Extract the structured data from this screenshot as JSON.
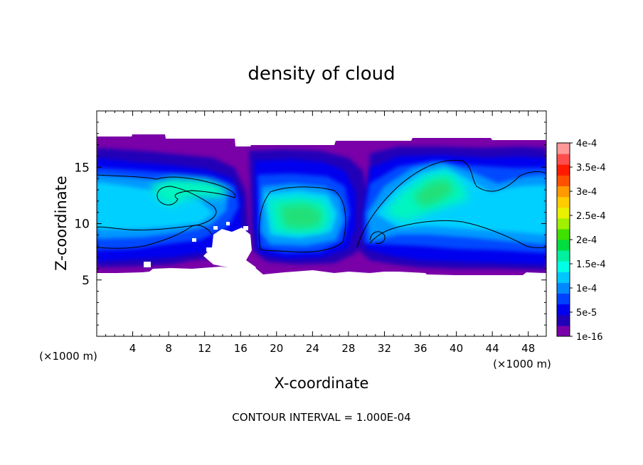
{
  "chart_data": {
    "type": "heatmap",
    "title": "density of cloud",
    "xlabel": "X-coordinate",
    "ylabel": "Z-coordinate",
    "x_unit": "(×1000 m)",
    "xlim": [
      0,
      50
    ],
    "ylim": [
      0,
      20
    ],
    "x_ticks": [
      4,
      8,
      12,
      16,
      20,
      24,
      28,
      32,
      36,
      40,
      44,
      48
    ],
    "y_ticks": [
      5,
      10,
      15
    ],
    "footer": "CONTOUR INTERVAL = 1.000E-04",
    "colorbar": {
      "labels": [
        "1e-16",
        "5e-5",
        "1e-4",
        "1.5e-4",
        "2e-4",
        "2.5e-4",
        "3e-4",
        "3.5e-4",
        "4e-4"
      ],
      "colors": [
        "#7a00a8",
        "#2000b8",
        "#0000ee",
        "#0040ff",
        "#0088ff",
        "#00c8ff",
        "#00ffe6",
        "#00f0a0",
        "#00dd40",
        "#40e000",
        "#a0f000",
        "#e8f000",
        "#ffcc00",
        "#ff9900",
        "#ff5000",
        "#ff1a00",
        "#ff4d4d",
        "#ff9999"
      ]
    },
    "cloud_layer": {
      "bottom_approx": 6,
      "top_approx": 17.5
    }
  }
}
